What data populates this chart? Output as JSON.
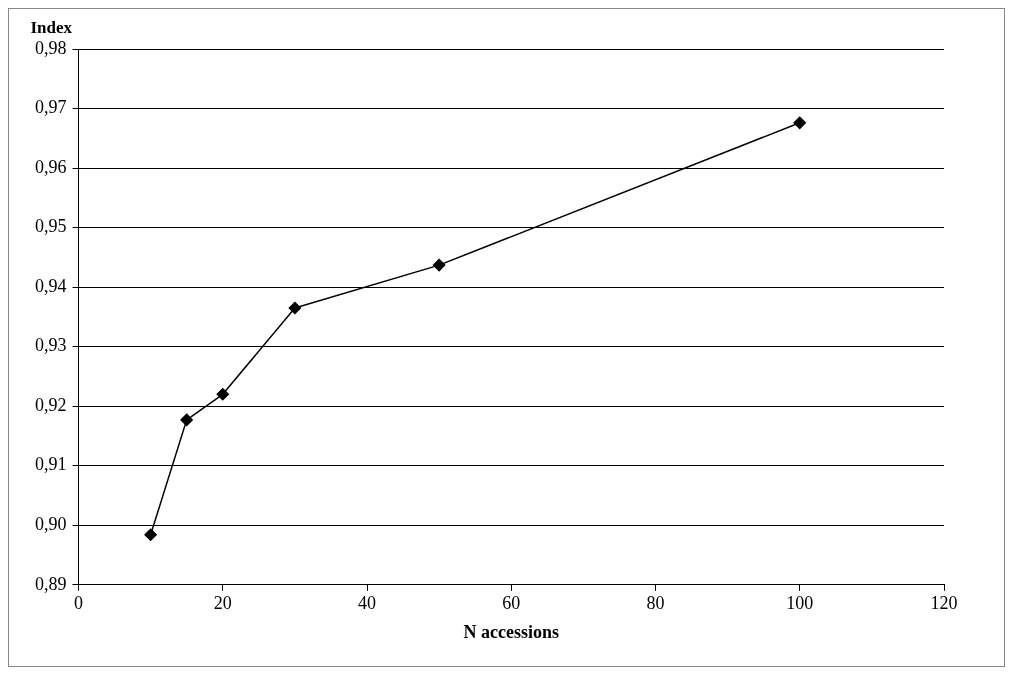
{
  "chart_data": {
    "type": "line",
    "xlabel": "N accessions",
    "ylabel": "Index",
    "x": [
      10,
      15,
      20,
      30,
      50,
      100
    ],
    "series": [
      {
        "color": "#000000",
        "values": [
          0.8984,
          0.9177,
          0.922,
          0.9365,
          0.9437,
          0.9676
        ]
      }
    ],
    "xlim": [
      0,
      120
    ],
    "xticks": [
      0,
      20,
      40,
      60,
      80,
      100,
      120
    ],
    "ylim": [
      0.89,
      0.98
    ],
    "yticks": [
      {
        "value": 0.89,
        "label": "0,89"
      },
      {
        "value": 0.9,
        "label": "0,90"
      },
      {
        "value": 0.91,
        "label": "0,91"
      },
      {
        "value": 0.92,
        "label": "0,92"
      },
      {
        "value": 0.93,
        "label": "0,93"
      },
      {
        "value": 0.94,
        "label": "0,94"
      },
      {
        "value": 0.95,
        "label": "0,95"
      },
      {
        "value": 0.96,
        "label": "0,96"
      },
      {
        "value": 0.97,
        "label": "0,97"
      },
      {
        "value": 0.98,
        "label": "0,98"
      }
    ],
    "grid": "y",
    "legend": false,
    "marker": "diamond",
    "line_style": "solid"
  }
}
